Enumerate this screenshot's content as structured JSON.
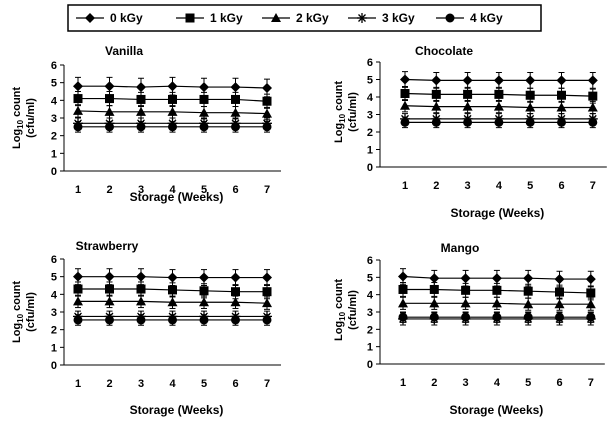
{
  "chart_data": [
    {
      "type": "line",
      "title": "Vanilla",
      "xlabel": "Storage (Weeks)",
      "ylabel_line1": "Log",
      "ylabel_sub": "10",
      "ylabel_rest": " count",
      "ylabel_line2": "(cfu/ml)",
      "x": [
        1,
        2,
        3,
        4,
        5,
        6,
        7
      ],
      "xticks": [
        "1",
        "2",
        "3",
        "4",
        "5",
        "6",
        "7"
      ],
      "yticks": [
        "0",
        "1",
        "2",
        "3",
        "4",
        "5",
        "6"
      ],
      "ylim": [
        0,
        6
      ],
      "series": [
        {
          "name": "0 kGy",
          "values": [
            4.8,
            4.8,
            4.75,
            4.8,
            4.75,
            4.75,
            4.7
          ],
          "error": 0.5
        },
        {
          "name": "1 kGy",
          "values": [
            4.1,
            4.1,
            4.05,
            4.05,
            4.05,
            4.05,
            3.95
          ],
          "error": 0.4
        },
        {
          "name": "2 kGy",
          "values": [
            3.4,
            3.35,
            3.35,
            3.35,
            3.3,
            3.3,
            3.25
          ],
          "error": 0.35
        },
        {
          "name": "3 kGy",
          "values": [
            2.7,
            2.7,
            2.7,
            2.7,
            2.7,
            2.7,
            2.7
          ],
          "error": 0.3
        },
        {
          "name": "4 kGy",
          "values": [
            2.5,
            2.5,
            2.5,
            2.5,
            2.5,
            2.5,
            2.5
          ],
          "error": 0.3
        }
      ]
    },
    {
      "type": "line",
      "title": "Chocolate",
      "xlabel": "Storage (Weeks)",
      "ylabel_line1": "Log",
      "ylabel_sub": "10",
      "ylabel_rest": " count",
      "ylabel_line2": "(cfu/ml)",
      "x": [
        1,
        2,
        3,
        4,
        5,
        6,
        7
      ],
      "xticks": [
        "1",
        "2",
        "3",
        "4",
        "5",
        "6",
        "7"
      ],
      "yticks": [
        "0",
        "1",
        "2",
        "3",
        "4",
        "5",
        "6"
      ],
      "ylim": [
        0,
        6
      ],
      "series": [
        {
          "name": "0 kGy",
          "values": [
            5.0,
            4.95,
            4.95,
            4.95,
            4.95,
            4.95,
            4.95
          ],
          "error": 0.45
        },
        {
          "name": "1 kGy",
          "values": [
            4.2,
            4.15,
            4.15,
            4.15,
            4.1,
            4.1,
            4.05
          ],
          "error": 0.4
        },
        {
          "name": "2 kGy",
          "values": [
            3.5,
            3.45,
            3.45,
            3.45,
            3.4,
            3.4,
            3.4
          ],
          "error": 0.35
        },
        {
          "name": "3 kGy",
          "values": [
            2.75,
            2.75,
            2.75,
            2.75,
            2.75,
            2.75,
            2.75
          ],
          "error": 0.3
        },
        {
          "name": "4 kGy",
          "values": [
            2.55,
            2.55,
            2.55,
            2.55,
            2.55,
            2.55,
            2.55
          ],
          "error": 0.3
        }
      ]
    },
    {
      "type": "line",
      "title": "Strawberry",
      "xlabel": "Storage (Weeks)",
      "ylabel_line1": "Log",
      "ylabel_sub": "10",
      "ylabel_rest": " count",
      "ylabel_line2": "(cfu/ml)",
      "x": [
        1,
        2,
        3,
        4,
        5,
        6,
        7
      ],
      "xticks": [
        "1",
        "2",
        "3",
        "4",
        "5",
        "6",
        "7"
      ],
      "yticks": [
        "0",
        "1",
        "2",
        "3",
        "4",
        "5",
        "6"
      ],
      "ylim": [
        0,
        6
      ],
      "series": [
        {
          "name": "0 kGy",
          "values": [
            5.0,
            5.0,
            5.0,
            4.95,
            4.95,
            4.95,
            4.95
          ],
          "error": 0.45
        },
        {
          "name": "1 kGy",
          "values": [
            4.3,
            4.3,
            4.3,
            4.25,
            4.2,
            4.15,
            4.15
          ],
          "error": 0.4
        },
        {
          "name": "2 kGy",
          "values": [
            3.6,
            3.6,
            3.6,
            3.55,
            3.55,
            3.55,
            3.5
          ],
          "error": 0.35
        },
        {
          "name": "3 kGy",
          "values": [
            2.75,
            2.75,
            2.75,
            2.75,
            2.75,
            2.75,
            2.75
          ],
          "error": 0.3
        },
        {
          "name": "4 kGy",
          "values": [
            2.55,
            2.55,
            2.55,
            2.55,
            2.55,
            2.55,
            2.55
          ],
          "error": 0.3
        }
      ]
    },
    {
      "type": "line",
      "title": "Mango",
      "xlabel": "Storage (Weeks)",
      "ylabel_line1": "Log",
      "ylabel_sub": "10",
      "ylabel_rest": " count",
      "ylabel_line2": "(cfu/ml)",
      "x": [
        1,
        2,
        3,
        4,
        5,
        6,
        7
      ],
      "xticks": [
        "1",
        "2",
        "3",
        "4",
        "5",
        "6",
        "7"
      ],
      "yticks": [
        "0",
        "1",
        "2",
        "3",
        "4",
        "5",
        "6"
      ],
      "ylim": [
        0,
        6
      ],
      "series": [
        {
          "name": "0 kGy",
          "values": [
            5.05,
            4.95,
            4.95,
            4.95,
            4.95,
            4.9,
            4.9
          ],
          "error": 0.45
        },
        {
          "name": "1 kGy",
          "values": [
            4.3,
            4.3,
            4.25,
            4.25,
            4.2,
            4.15,
            4.1
          ],
          "error": 0.4
        },
        {
          "name": "2 kGy",
          "values": [
            3.5,
            3.5,
            3.5,
            3.5,
            3.45,
            3.45,
            3.45
          ],
          "error": 0.35
        },
        {
          "name": "3 kGy",
          "values": [
            2.6,
            2.6,
            2.6,
            2.6,
            2.6,
            2.6,
            2.6
          ],
          "error": 0.35
        },
        {
          "name": "4 kGy",
          "values": [
            2.7,
            2.7,
            2.7,
            2.7,
            2.7,
            2.7,
            2.7
          ],
          "error": 0.3
        }
      ]
    }
  ],
  "legend": {
    "placement": "top",
    "items": [
      {
        "label": "0 kGy",
        "marker": "diamond"
      },
      {
        "label": "1 kGy",
        "marker": "square"
      },
      {
        "label": "2 kGy",
        "marker": "triangle"
      },
      {
        "label": "3 kGy",
        "marker": "asterisk"
      },
      {
        "label": "4 kGy",
        "marker": "circle"
      }
    ]
  }
}
